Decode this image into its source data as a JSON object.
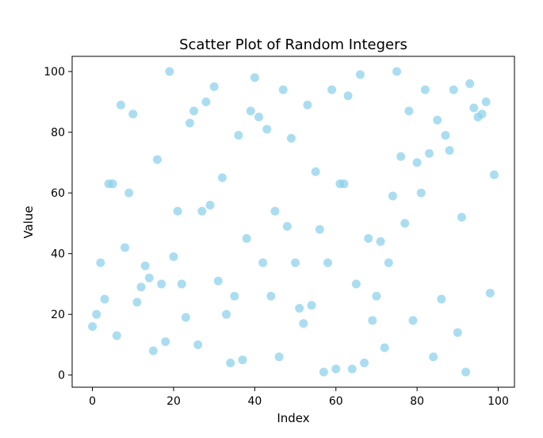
{
  "chart_data": {
    "type": "scatter",
    "title": "Scatter Plot of Random Integers",
    "xlabel": "Index",
    "ylabel": "Value",
    "xlim": [
      -5,
      104
    ],
    "ylim": [
      -4,
      105
    ],
    "xticks": [
      0,
      20,
      40,
      60,
      80,
      100
    ],
    "yticks": [
      0,
      20,
      40,
      60,
      80,
      100
    ],
    "grid": false,
    "marker_color": "#87ceeb",
    "marker_alpha": 0.7,
    "series": [
      {
        "x": [
          0,
          1,
          2,
          3,
          4,
          5,
          6,
          7,
          8,
          9,
          10,
          11,
          12,
          13,
          14,
          15,
          16,
          17,
          18,
          19,
          20,
          21,
          22,
          23,
          24,
          25,
          26,
          27,
          28,
          29,
          30,
          31,
          32,
          33,
          34,
          35,
          36,
          37,
          38,
          39,
          40,
          41,
          42,
          43,
          44,
          45,
          46,
          47,
          48,
          49,
          50,
          51,
          52,
          53,
          54,
          55,
          56,
          57,
          58,
          59,
          60,
          61,
          62,
          63,
          64,
          65,
          66,
          67,
          68,
          69,
          70,
          71,
          72,
          73,
          74,
          75,
          76,
          77,
          78,
          79,
          80,
          81,
          82,
          83,
          84,
          85,
          86,
          87,
          88,
          89,
          90,
          91,
          92,
          93,
          94,
          95,
          96,
          97,
          98,
          99
        ],
        "y": [
          16,
          20,
          37,
          25,
          63,
          63,
          13,
          89,
          42,
          60,
          86,
          24,
          29,
          36,
          32,
          8,
          71,
          30,
          11,
          100,
          39,
          54,
          30,
          19,
          83,
          87,
          10,
          54,
          90,
          56,
          95,
          31,
          65,
          20,
          4,
          26,
          79,
          5,
          45,
          87,
          98,
          85,
          37,
          81,
          26,
          54,
          6,
          94,
          49,
          78,
          37,
          22,
          17,
          89,
          23,
          67,
          48,
          1,
          37,
          94,
          2,
          63,
          63,
          92,
          2,
          30,
          99,
          4,
          45,
          18,
          26,
          44,
          9,
          37,
          59,
          100,
          72,
          50,
          87,
          18,
          70,
          60,
          94,
          73,
          6,
          84,
          25,
          79,
          74,
          94,
          14,
          52,
          1,
          96,
          88,
          85,
          86,
          90,
          27,
          66
        ]
      }
    ]
  }
}
